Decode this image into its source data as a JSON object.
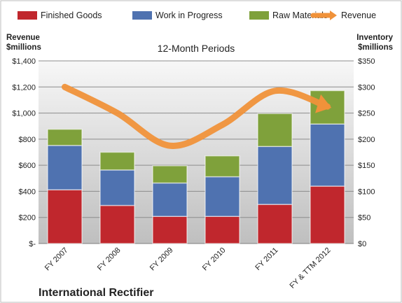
{
  "chart_data": {
    "type": "bar",
    "subtype": "stacked-bar-with-line",
    "title": "International Rectifier",
    "subtitle": "12-Month Periods",
    "categories": [
      "FY 2007",
      "FY 2008",
      "FY 2009",
      "FY 2010",
      "FY 2011",
      "FY & TTM 2012"
    ],
    "left_axis": {
      "label_line1": "Revenue",
      "label_line2": "$millions",
      "range": [
        0,
        1400
      ],
      "ticks": [
        0,
        200,
        400,
        600,
        800,
        1000,
        1200,
        1400
      ],
      "tick_labels": [
        "$-",
        "$200",
        "$400",
        "$600",
        "$800",
        "$1,000",
        "$1,200",
        "$1,400"
      ]
    },
    "right_axis": {
      "label_line1": "Inventory",
      "label_line2": "$millions",
      "range": [
        0,
        350
      ],
      "ticks": [
        0,
        50,
        100,
        150,
        200,
        250,
        300,
        350
      ],
      "tick_labels": [
        "$0",
        "$50",
        "$100",
        "$150",
        "$200",
        "$250",
        "$300",
        "$350"
      ]
    },
    "series": [
      {
        "name": "Finished Goods",
        "axis": "right",
        "color": "#c0272d",
        "values": [
          103,
          73,
          52,
          52,
          75,
          110
        ]
      },
      {
        "name": "Work in Progress",
        "axis": "right",
        "color": "#4f72b0",
        "values": [
          85,
          68,
          64,
          76,
          111,
          119
        ]
      },
      {
        "name": "Raw Materials",
        "axis": "right",
        "color": "#7fa13b",
        "values": [
          31,
          34,
          33,
          40,
          63,
          64
        ]
      },
      {
        "name": "Revenue",
        "axis": "left",
        "type": "line",
        "color": "#f0923a",
        "values": [
          1200,
          1000,
          750,
          910,
          1170,
          1050
        ]
      }
    ],
    "legend_position": "top",
    "grid": true
  }
}
